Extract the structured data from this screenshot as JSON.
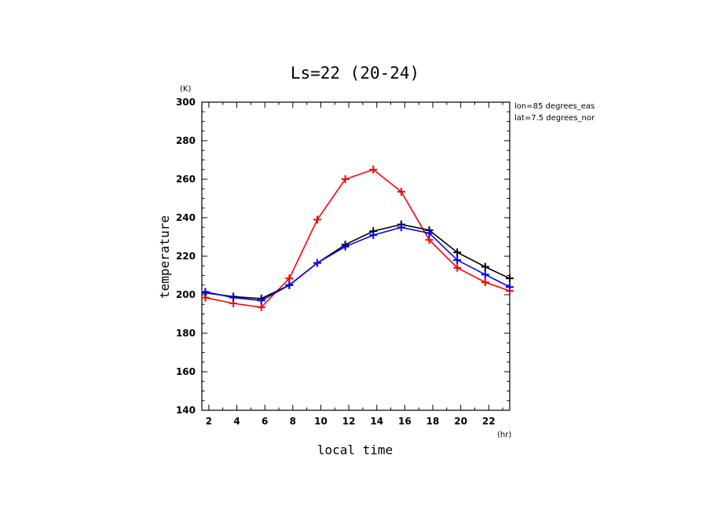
{
  "chart_data": {
    "type": "line",
    "title": "Ls=22 (20-24)",
    "xlabel": "local time",
    "ylabel": "temperature",
    "x_unit": "(hr)",
    "y_unit": "(K)",
    "annotations": [
      "lon=85 degrees_eas",
      "lat=7.5 degrees_nor"
    ],
    "xlim": [
      1.5,
      23.5
    ],
    "ylim": [
      140,
      300
    ],
    "x_ticks": [
      2,
      4,
      6,
      8,
      10,
      12,
      14,
      16,
      18,
      20,
      22
    ],
    "y_ticks": [
      140,
      160,
      180,
      200,
      220,
      240,
      260,
      280,
      300
    ],
    "x": [
      1.75,
      3.75,
      5.75,
      7.75,
      9.75,
      11.75,
      13.75,
      15.75,
      17.75,
      19.75,
      21.75,
      23.5
    ],
    "series": [
      {
        "color": "#ff0000",
        "values": [
          198.5,
          195.5,
          193.5,
          208.5,
          239,
          260,
          265,
          253.5,
          228.5,
          214,
          206.5,
          202
        ]
      },
      {
        "color": "#000000",
        "values": [
          201,
          199,
          198,
          205,
          216.5,
          226,
          233,
          236.5,
          233.5,
          222,
          214.5,
          208.5
        ]
      },
      {
        "color": "#0000ff",
        "values": [
          201.5,
          198.5,
          197,
          205,
          216.5,
          225,
          231,
          235,
          232,
          218,
          210.5,
          204
        ]
      }
    ],
    "grid": false,
    "legend": "none"
  }
}
